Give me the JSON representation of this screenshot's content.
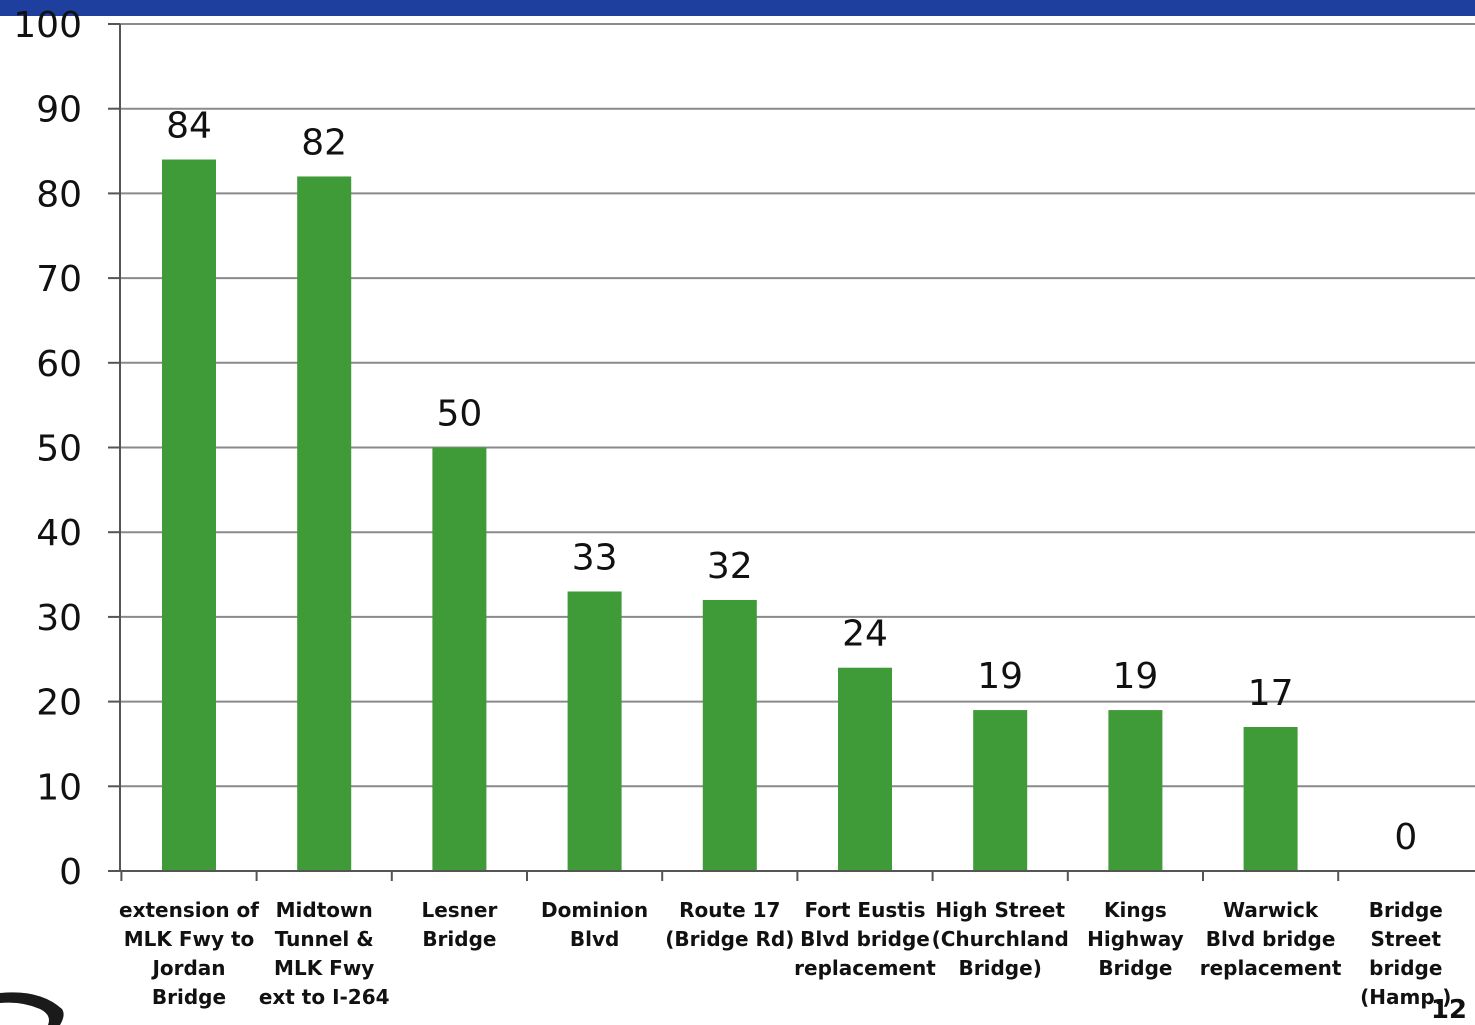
{
  "chart_data": {
    "type": "bar",
    "categories": [
      "extension of MLK Fwy to Jordan Bridge",
      "Midtown Tunnel & MLK Fwy ext to I-264",
      "Lesner Bridge",
      "Dominion Blvd",
      "Route 17 (Bridge Rd)",
      "Fort Eustis Blvd bridge replacement",
      "High Street (Churchland Bridge)",
      "Kings Highway Bridge",
      "Warwick Blvd bridge replacement",
      "Bridge Street bridge (Hamp.)"
    ],
    "category_lines": [
      [
        "extension of",
        "MLK Fwy to",
        "Jordan",
        "Bridge"
      ],
      [
        "Midtown",
        "Tunnel &",
        "MLK Fwy",
        "ext to I-264"
      ],
      [
        "Lesner",
        "Bridge"
      ],
      [
        "Dominion",
        "Blvd"
      ],
      [
        "Route 17",
        "(Bridge Rd)"
      ],
      [
        "Fort Eustis",
        "Blvd bridge",
        "replacement"
      ],
      [
        "High Street",
        "(Churchland",
        "Bridge)"
      ],
      [
        "Kings",
        "Highway",
        "Bridge"
      ],
      [
        "Warwick",
        "Blvd bridge",
        "replacement"
      ],
      [
        "Bridge",
        "Street",
        "bridge",
        "(Hamp.)"
      ]
    ],
    "values": [
      84,
      82,
      50,
      33,
      32,
      24,
      19,
      19,
      17,
      0
    ],
    "ylim": [
      0,
      100
    ],
    "yticks": [
      0,
      10,
      20,
      30,
      40,
      50,
      60,
      70,
      80,
      90,
      100
    ],
    "grid": true,
    "bar_color": "#3f9a38",
    "title": "",
    "xlabel": "",
    "ylabel": ""
  },
  "slide": {
    "number": "12",
    "bar_color": "#1f3f9e"
  }
}
